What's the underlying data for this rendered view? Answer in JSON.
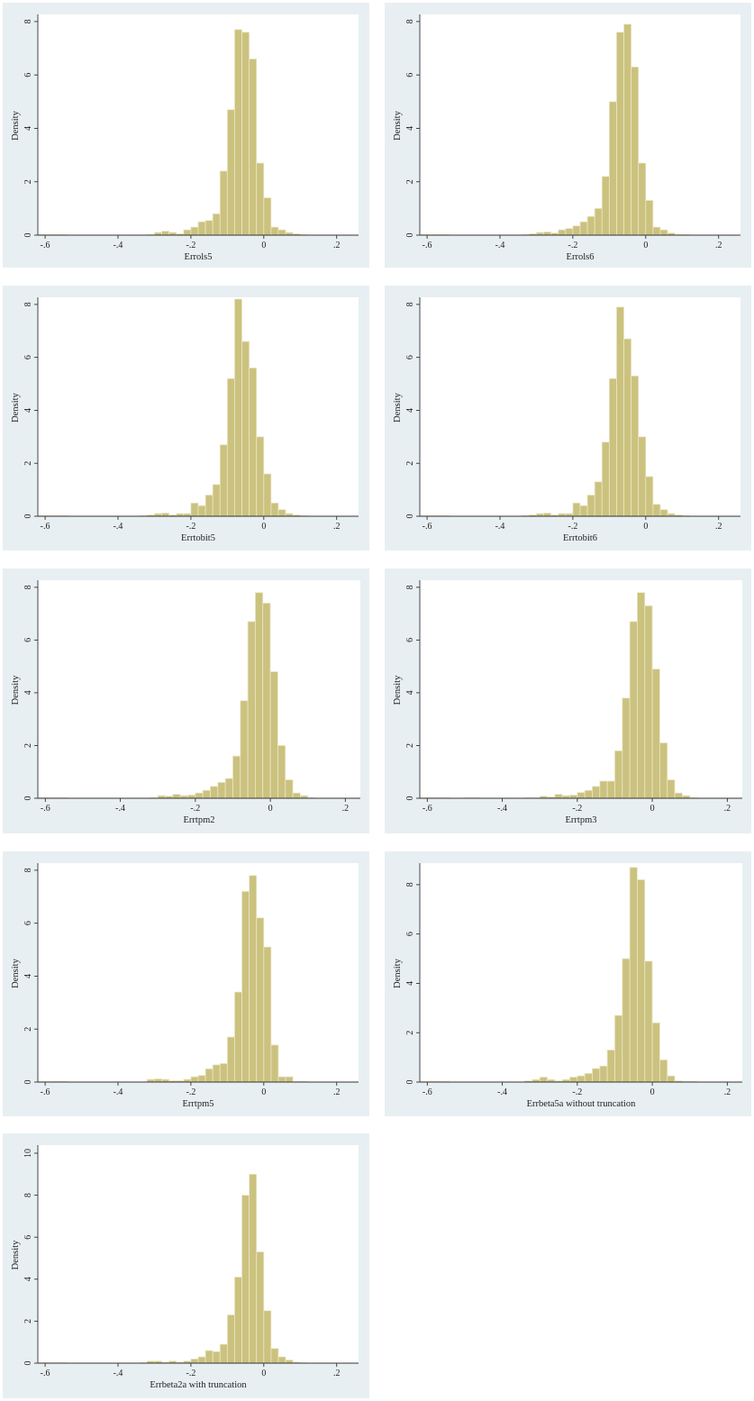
{
  "colors": {
    "panel_background": "#e8eff2",
    "bar_fill": "#cbc27f",
    "bar_edge": "#ece7c9",
    "plot_background": "#ffffff"
  },
  "chart_data": [
    {
      "type": "bar",
      "xlabel": "Errols5",
      "ylabel": "Density",
      "xlim": [
        -0.62,
        0.26
      ],
      "ylim": [
        0,
        8.2
      ],
      "xticks": [
        -0.6,
        -0.4,
        -0.2,
        0,
        0.2
      ],
      "xtick_labels": [
        "-.6",
        "-.4",
        "-.2",
        "0",
        ".2"
      ],
      "yticks": [
        0,
        2,
        4,
        6,
        8
      ],
      "ytick_labels": [
        "0",
        "2",
        "4",
        "6",
        "8"
      ],
      "bin_width": 0.02,
      "bin_starts": [
        -0.62,
        -0.6,
        -0.58,
        -0.56,
        -0.54,
        -0.52,
        -0.5,
        -0.48,
        -0.46,
        -0.44,
        -0.42,
        -0.4,
        -0.38,
        -0.36,
        -0.34,
        -0.32,
        -0.3,
        -0.28,
        -0.26,
        -0.24,
        -0.22,
        -0.2,
        -0.18,
        -0.16,
        -0.14,
        -0.12,
        -0.1,
        -0.08,
        -0.06,
        -0.04,
        -0.02,
        0,
        0.02,
        0.04,
        0.06,
        0.08,
        0.1,
        0.12,
        0.14,
        0.16,
        0.18,
        0.2,
        0.22,
        0.24
      ],
      "values": [
        0.02,
        0.02,
        0.02,
        0.02,
        0,
        0,
        0,
        0,
        0,
        0,
        0,
        0,
        0,
        0,
        0,
        0.02,
        0.1,
        0.15,
        0.1,
        0.05,
        0.2,
        0.3,
        0.5,
        0.55,
        0.8,
        2.4,
        4.7,
        7.7,
        7.6,
        6.6,
        2.7,
        1.4,
        0.3,
        0.2,
        0.1,
        0.05,
        0.02,
        0,
        0,
        0,
        0,
        0,
        0,
        0
      ]
    },
    {
      "type": "bar",
      "xlabel": "Errols6",
      "ylabel": "Density",
      "xlim": [
        -0.62,
        0.26
      ],
      "ylim": [
        0,
        8.2
      ],
      "xticks": [
        -0.6,
        -0.4,
        -0.2,
        0,
        0.2
      ],
      "xtick_labels": [
        "-.6",
        "-.4",
        "-.2",
        "0",
        ".2"
      ],
      "yticks": [
        0,
        2,
        4,
        6,
        8
      ],
      "ytick_labels": [
        "0",
        "2",
        "4",
        "6",
        "8"
      ],
      "bin_width": 0.02,
      "bin_starts": [
        -0.62,
        -0.6,
        -0.58,
        -0.56,
        -0.54,
        -0.52,
        -0.5,
        -0.48,
        -0.46,
        -0.44,
        -0.42,
        -0.4,
        -0.38,
        -0.36,
        -0.34,
        -0.32,
        -0.3,
        -0.28,
        -0.26,
        -0.24,
        -0.22,
        -0.2,
        -0.18,
        -0.16,
        -0.14,
        -0.12,
        -0.1,
        -0.08,
        -0.06,
        -0.04,
        -0.02,
        0,
        0.02,
        0.04,
        0.06,
        0.08,
        0.1,
        0.12,
        0.14,
        0.16,
        0.18,
        0.2,
        0.22,
        0.24
      ],
      "values": [
        0.02,
        0.02,
        0.02,
        0.02,
        0,
        0,
        0,
        0,
        0,
        0,
        0,
        0,
        0,
        0,
        0.02,
        0.05,
        0.1,
        0.12,
        0.08,
        0.2,
        0.25,
        0.35,
        0.5,
        0.7,
        1.0,
        2.2,
        5.0,
        7.6,
        7.9,
        6.3,
        2.7,
        1.3,
        0.3,
        0.2,
        0.08,
        0.03,
        0.02,
        0,
        0,
        0,
        0,
        0,
        0,
        0
      ]
    },
    {
      "type": "bar",
      "xlabel": "Errtobit5",
      "ylabel": "Density",
      "xlim": [
        -0.62,
        0.26
      ],
      "ylim": [
        0,
        8.2
      ],
      "xticks": [
        -0.6,
        -0.4,
        -0.2,
        0,
        0.2
      ],
      "xtick_labels": [
        "-.6",
        "-.4",
        "-.2",
        "0",
        ".2"
      ],
      "yticks": [
        0,
        2,
        4,
        6,
        8
      ],
      "ytick_labels": [
        "0",
        "2",
        "4",
        "6",
        "8"
      ],
      "bin_width": 0.02,
      "bin_starts": [
        -0.62,
        -0.6,
        -0.58,
        -0.56,
        -0.54,
        -0.52,
        -0.5,
        -0.48,
        -0.46,
        -0.44,
        -0.42,
        -0.4,
        -0.38,
        -0.36,
        -0.34,
        -0.32,
        -0.3,
        -0.28,
        -0.26,
        -0.24,
        -0.22,
        -0.2,
        -0.18,
        -0.16,
        -0.14,
        -0.12,
        -0.1,
        -0.08,
        -0.06,
        -0.04,
        -0.02,
        0,
        0.02,
        0.04,
        0.06,
        0.08,
        0.1,
        0.12,
        0.14,
        0.16,
        0.18,
        0.2,
        0.22,
        0.24
      ],
      "values": [
        0.02,
        0.02,
        0.02,
        0.02,
        0,
        0,
        0,
        0,
        0,
        0,
        0,
        0,
        0,
        0,
        0.02,
        0.05,
        0.1,
        0.12,
        0.05,
        0.1,
        0.1,
        0.5,
        0.4,
        0.8,
        1.2,
        2.7,
        5.2,
        8.2,
        6.6,
        5.6,
        3.0,
        1.6,
        0.5,
        0.25,
        0.1,
        0.05,
        0.02,
        0,
        0,
        0,
        0,
        0,
        0,
        0
      ]
    },
    {
      "type": "bar",
      "xlabel": "Errtobit6",
      "ylabel": "Density",
      "xlim": [
        -0.62,
        0.26
      ],
      "ylim": [
        0,
        8.2
      ],
      "xticks": [
        -0.6,
        -0.4,
        -0.2,
        0,
        0.2
      ],
      "xtick_labels": [
        "-.6",
        "-.4",
        "-.2",
        "0",
        ".2"
      ],
      "yticks": [
        0,
        2,
        4,
        6,
        8
      ],
      "ytick_labels": [
        "0",
        "2",
        "4",
        "6",
        "8"
      ],
      "bin_width": 0.02,
      "bin_starts": [
        -0.62,
        -0.6,
        -0.58,
        -0.56,
        -0.54,
        -0.52,
        -0.5,
        -0.48,
        -0.46,
        -0.44,
        -0.42,
        -0.4,
        -0.38,
        -0.36,
        -0.34,
        -0.32,
        -0.3,
        -0.28,
        -0.26,
        -0.24,
        -0.22,
        -0.2,
        -0.18,
        -0.16,
        -0.14,
        -0.12,
        -0.1,
        -0.08,
        -0.06,
        -0.04,
        -0.02,
        0,
        0.02,
        0.04,
        0.06,
        0.08,
        0.1,
        0.12,
        0.14,
        0.16,
        0.18,
        0.2,
        0.22,
        0.24
      ],
      "values": [
        0.02,
        0.02,
        0.02,
        0.02,
        0,
        0,
        0,
        0,
        0,
        0,
        0,
        0,
        0,
        0,
        0.02,
        0.05,
        0.1,
        0.12,
        0.05,
        0.1,
        0.1,
        0.5,
        0.4,
        0.8,
        1.3,
        2.8,
        5.2,
        7.9,
        6.7,
        5.3,
        3.0,
        1.5,
        0.45,
        0.25,
        0.1,
        0.05,
        0.02,
        0,
        0,
        0,
        0,
        0,
        0,
        0
      ]
    },
    {
      "type": "bar",
      "xlabel": "Errtpm2",
      "ylabel": "Density",
      "xlim": [
        -0.62,
        0.24
      ],
      "ylim": [
        0,
        8.2
      ],
      "xticks": [
        -0.6,
        -0.4,
        -0.2,
        0,
        0.2
      ],
      "xtick_labels": [
        "-.6",
        "-.4",
        "-.2",
        "0",
        ".2"
      ],
      "yticks": [
        0,
        2,
        4,
        6,
        8
      ],
      "ytick_labels": [
        "0",
        "2",
        "4",
        "6",
        "8"
      ],
      "bin_width": 0.02,
      "bin_starts": [
        -0.62,
        -0.6,
        -0.58,
        -0.56,
        -0.54,
        -0.52,
        -0.5,
        -0.48,
        -0.46,
        -0.44,
        -0.42,
        -0.4,
        -0.38,
        -0.36,
        -0.34,
        -0.32,
        -0.3,
        -0.28,
        -0.26,
        -0.24,
        -0.22,
        -0.2,
        -0.18,
        -0.16,
        -0.14,
        -0.12,
        -0.1,
        -0.08,
        -0.06,
        -0.04,
        -0.02,
        0,
        0.02,
        0.04,
        0.06,
        0.08,
        0.1,
        0.12,
        0.14,
        0.16,
        0.18,
        0.2,
        0.22
      ],
      "values": [
        0.02,
        0.02,
        0.02,
        0.02,
        0,
        0,
        0,
        0,
        0,
        0,
        0,
        0,
        0,
        0,
        0,
        0.02,
        0.1,
        0.08,
        0.15,
        0.1,
        0.12,
        0.2,
        0.3,
        0.45,
        0.6,
        0.75,
        1.6,
        3.7,
        6.7,
        7.8,
        7.4,
        4.8,
        2.0,
        0.7,
        0.2,
        0.1,
        0.02,
        0,
        0,
        0,
        0,
        0,
        0
      ]
    },
    {
      "type": "bar",
      "xlabel": "Errtpm3",
      "ylabel": "Density",
      "xlim": [
        -0.62,
        0.24
      ],
      "ylim": [
        0,
        8.2
      ],
      "xticks": [
        -0.6,
        -0.4,
        -0.2,
        0,
        0.2
      ],
      "xtick_labels": [
        "-.6",
        "-.4",
        "-.2",
        "0",
        ".2"
      ],
      "yticks": [
        0,
        2,
        4,
        6,
        8
      ],
      "ytick_labels": [
        "0",
        "2",
        "4",
        "6",
        "8"
      ],
      "bin_width": 0.02,
      "bin_starts": [
        -0.62,
        -0.6,
        -0.58,
        -0.56,
        -0.54,
        -0.52,
        -0.5,
        -0.48,
        -0.46,
        -0.44,
        -0.42,
        -0.4,
        -0.38,
        -0.36,
        -0.34,
        -0.32,
        -0.3,
        -0.28,
        -0.26,
        -0.24,
        -0.22,
        -0.2,
        -0.18,
        -0.16,
        -0.14,
        -0.12,
        -0.1,
        -0.08,
        -0.06,
        -0.04,
        -0.02,
        0,
        0.02,
        0.04,
        0.06,
        0.08,
        0.1,
        0.12,
        0.14,
        0.16,
        0.18,
        0.2,
        0.22
      ],
      "values": [
        0.02,
        0.02,
        0.02,
        0.02,
        0,
        0,
        0.02,
        0.02,
        0,
        0,
        0,
        0,
        0,
        0,
        0.02,
        0.02,
        0.08,
        0.05,
        0.15,
        0.1,
        0.12,
        0.22,
        0.3,
        0.45,
        0.65,
        0.65,
        1.8,
        3.8,
        6.7,
        7.8,
        7.3,
        4.9,
        2.1,
        0.7,
        0.2,
        0.1,
        0.02,
        0,
        0,
        0,
        0,
        0,
        0
      ]
    },
    {
      "type": "bar",
      "xlabel": "Errtpm5",
      "ylabel": "Density",
      "xlim": [
        -0.62,
        0.26
      ],
      "ylim": [
        0,
        8.2
      ],
      "xticks": [
        -0.6,
        -0.4,
        -0.2,
        0,
        0.2
      ],
      "xtick_labels": [
        "-.6",
        "-.4",
        "-.2",
        "0",
        ".2"
      ],
      "yticks": [
        0,
        2,
        4,
        6,
        8
      ],
      "ytick_labels": [
        "0",
        "2",
        "4",
        "6",
        "8"
      ],
      "bin_width": 0.02,
      "bin_starts": [
        -0.62,
        -0.6,
        -0.58,
        -0.56,
        -0.54,
        -0.52,
        -0.5,
        -0.48,
        -0.46,
        -0.44,
        -0.42,
        -0.4,
        -0.38,
        -0.36,
        -0.34,
        -0.32,
        -0.3,
        -0.28,
        -0.26,
        -0.24,
        -0.22,
        -0.2,
        -0.18,
        -0.16,
        -0.14,
        -0.12,
        -0.1,
        -0.08,
        -0.06,
        -0.04,
        -0.02,
        0,
        0.02,
        0.04,
        0.06,
        0.08,
        0.1,
        0.12,
        0.14,
        0.16,
        0.18,
        0.2,
        0.22,
        0.24
      ],
      "values": [
        0.02,
        0.02,
        0.02,
        0.02,
        0,
        0,
        0,
        0,
        0,
        0,
        0,
        0,
        0,
        0,
        0,
        0.1,
        0.12,
        0.1,
        0.05,
        0.05,
        0.1,
        0.2,
        0.25,
        0.5,
        0.65,
        0.7,
        1.7,
        3.4,
        7.2,
        7.8,
        6.2,
        5.1,
        1.4,
        0.2,
        0.2,
        0.02,
        0.02,
        0,
        0,
        0,
        0,
        0,
        0,
        0
      ]
    },
    {
      "type": "bar",
      "xlabel": "Errbeta5a without truncation",
      "ylabel": "Density",
      "xlim": [
        -0.62,
        0.24
      ],
      "ylim": [
        0,
        8.8
      ],
      "xticks": [
        -0.6,
        -0.4,
        -0.2,
        0,
        0.2
      ],
      "xtick_labels": [
        "-.6",
        "-.4",
        "-.2",
        "0",
        ".2"
      ],
      "yticks": [
        0,
        2,
        4,
        6,
        8
      ],
      "ytick_labels": [
        "0",
        "2",
        "4",
        "6",
        "8"
      ],
      "bin_width": 0.02,
      "bin_starts": [
        -0.62,
        -0.6,
        -0.58,
        -0.56,
        -0.54,
        -0.52,
        -0.5,
        -0.48,
        -0.46,
        -0.44,
        -0.42,
        -0.4,
        -0.38,
        -0.36,
        -0.34,
        -0.32,
        -0.3,
        -0.28,
        -0.26,
        -0.24,
        -0.22,
        -0.2,
        -0.18,
        -0.16,
        -0.14,
        -0.12,
        -0.1,
        -0.08,
        -0.06,
        -0.04,
        -0.02,
        0,
        0.02,
        0.04,
        0.06,
        0.08,
        0.1,
        0.12,
        0.14,
        0.16,
        0.18,
        0.2,
        0.22
      ],
      "values": [
        0.02,
        0.02,
        0.02,
        0.02,
        0,
        0,
        0,
        0,
        0,
        0,
        0,
        0,
        0,
        0,
        0.05,
        0.1,
        0.2,
        0.1,
        0.05,
        0.1,
        0.2,
        0.25,
        0.35,
        0.55,
        0.65,
        1.3,
        2.7,
        5.0,
        8.7,
        8.2,
        4.9,
        2.4,
        0.9,
        0.25,
        0.05,
        0.02,
        0.02,
        0,
        0,
        0,
        0,
        0,
        0
      ]
    },
    {
      "type": "bar",
      "xlabel": "Errbeta2a with truncation",
      "ylabel": "Density",
      "xlim": [
        -0.62,
        0.26
      ],
      "ylim": [
        0,
        10.3
      ],
      "xticks": [
        -0.6,
        -0.4,
        -0.2,
        0,
        0.2
      ],
      "xtick_labels": [
        "-.6",
        "-.4",
        "-.2",
        "0",
        ".2"
      ],
      "yticks": [
        0,
        2,
        4,
        6,
        8,
        10
      ],
      "ytick_labels": [
        "0",
        "2",
        "4",
        "6",
        "8",
        "10"
      ],
      "bin_width": 0.02,
      "bin_starts": [
        -0.62,
        -0.6,
        -0.58,
        -0.56,
        -0.54,
        -0.52,
        -0.5,
        -0.48,
        -0.46,
        -0.44,
        -0.42,
        -0.4,
        -0.38,
        -0.36,
        -0.34,
        -0.32,
        -0.3,
        -0.28,
        -0.26,
        -0.24,
        -0.22,
        -0.2,
        -0.18,
        -0.16,
        -0.14,
        -0.12,
        -0.1,
        -0.08,
        -0.06,
        -0.04,
        -0.02,
        0,
        0.02,
        0.04,
        0.06,
        0.08,
        0.1,
        0.12,
        0.14,
        0.16,
        0.18,
        0.2,
        0.22,
        0.24
      ],
      "values": [
        0.02,
        0.02,
        0.02,
        0.02,
        0,
        0,
        0,
        0,
        0,
        0,
        0,
        0,
        0,
        0,
        0.02,
        0.1,
        0.1,
        0.05,
        0.1,
        0.05,
        0.1,
        0.2,
        0.3,
        0.6,
        0.55,
        0.9,
        2.3,
        4.1,
        8.0,
        9.0,
        5.3,
        2.5,
        0.7,
        0.3,
        0.15,
        0.05,
        0.02,
        0,
        0,
        0,
        0,
        0,
        0,
        0
      ]
    }
  ]
}
